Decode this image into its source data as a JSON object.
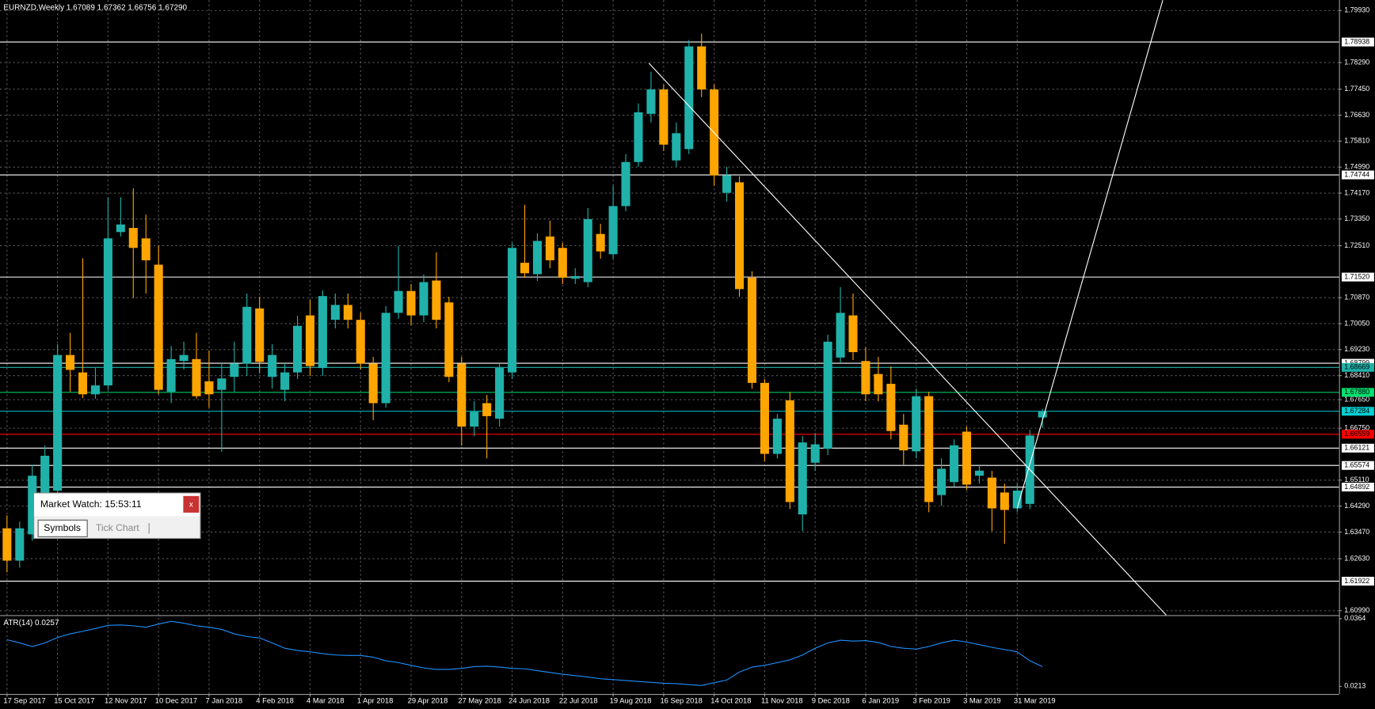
{
  "chart_data": {
    "type": "candlestick",
    "title": "EURNZD,Weekly  1.67089 1.67362 1.66756 1.67290",
    "categories": [
      "17 Sep 2017",
      null,
      null,
      null,
      "15 Oct 2017",
      null,
      null,
      null,
      "12 Nov 2017",
      null,
      null,
      null,
      "10 Dec 2017",
      null,
      null,
      null,
      "7 Jan 2018",
      null,
      null,
      null,
      "4 Feb 2018",
      null,
      null,
      null,
      "4 Mar 2018",
      null,
      null,
      null,
      "1 Apr 2018",
      null,
      null,
      null,
      "29 Apr 2018",
      null,
      null,
      null,
      "27 May 2018",
      null,
      null,
      null,
      "24 Jun 2018",
      null,
      null,
      null,
      "22 Jul 2018",
      null,
      null,
      null,
      "19 Aug 2018",
      null,
      null,
      null,
      "16 Sep 2018",
      null,
      null,
      null,
      "14 Oct 2018",
      null,
      null,
      null,
      "11 Nov 2018",
      null,
      null,
      null,
      "9 Dec 2018",
      null,
      null,
      null,
      "6 Jan 2019",
      null,
      null,
      null,
      "3 Feb 2019",
      null,
      null,
      null,
      "3 Mar 2019",
      null,
      null,
      null,
      "31 Mar 2019",
      null,
      null
    ],
    "open": [
      1.6359,
      1.6257,
      1.634,
      1.6409,
      1.6478,
      1.6906,
      1.6851,
      1.6782,
      1.681,
      1.7294,
      1.7307,
      1.7274,
      1.7191,
      1.679,
      1.6887,
      1.6893,
      1.6823,
      1.6796,
      1.6837,
      1.6879,
      1.7053,
      1.6837,
      1.6796,
      1.6851,
      1.7031,
      1.6865,
      1.7017,
      1.7064,
      1.7017,
      1.6879,
      1.6754,
      1.7039,
      1.7108,
      1.7031,
      1.7141,
      1.7072,
      1.6879,
      1.668,
      1.6754,
      1.6705,
      1.6851,
      1.7197,
      1.7161,
      1.728,
      1.7244,
      1.7147,
      1.7136,
      1.7288,
      1.7224,
      1.7376,
      1.7515,
      1.7667,
      1.7744,
      1.752,
      1.7556,
      1.788,
      1.7744,
      1.7418,
      1.7451,
      1.715,
      1.6818,
      1.6594,
      1.6763,
      1.6403,
      1.6566,
      1.661,
      1.6898,
      1.7031,
      1.6887,
      1.6846,
      1.6815,
      1.6686,
      1.6602,
      1.6776,
      1.6464,
      1.6505,
      1.6664,
      1.6525,
      1.6519,
      1.6472,
      1.6422,
      1.6436,
      1.67089
    ],
    "high": [
      1.64,
      1.638,
      1.656,
      1.662,
      1.694,
      1.6976,
      1.7211,
      1.6865,
      1.7404,
      1.7404,
      1.7432,
      1.7349,
      1.7252,
      1.6934,
      1.6948,
      1.6976,
      1.692,
      1.688,
      1.6948,
      1.71,
      1.709,
      1.694,
      1.688,
      1.703,
      1.708,
      1.711,
      1.71,
      1.71,
      1.704,
      1.69,
      1.706,
      1.725,
      1.713,
      1.716,
      1.723,
      1.709,
      1.69,
      1.676,
      1.678,
      1.688,
      1.726,
      1.738,
      1.729,
      1.733,
      1.726,
      1.718,
      1.737,
      1.732,
      1.744,
      1.754,
      1.77,
      1.78,
      1.776,
      1.764,
      1.79,
      1.792,
      1.776,
      1.75,
      1.747,
      1.717,
      1.683,
      1.672,
      1.679,
      1.665,
      1.666,
      1.697,
      1.712,
      1.71,
      1.693,
      1.69,
      1.687,
      1.672,
      1.68,
      1.679,
      1.658,
      1.664,
      1.668,
      1.656,
      1.654,
      1.65,
      1.65,
      1.667,
      1.67362
    ],
    "low": [
      1.622,
      1.6235,
      1.632,
      1.6395,
      1.646,
      1.679,
      1.677,
      1.6768,
      1.6796,
      1.728,
      1.7086,
      1.71,
      1.6782,
      1.6754,
      1.686,
      1.6768,
      1.674,
      1.66,
      1.679,
      1.684,
      1.685,
      1.68,
      1.676,
      1.683,
      1.684,
      1.684,
      1.699,
      1.699,
      1.686,
      1.67,
      1.674,
      1.702,
      1.7,
      1.701,
      1.699,
      1.682,
      1.662,
      1.665,
      1.658,
      1.668,
      1.683,
      1.715,
      1.714,
      1.718,
      1.713,
      1.713,
      1.712,
      1.721,
      1.721,
      1.736,
      1.75,
      1.764,
      1.755,
      1.75,
      1.754,
      1.772,
      1.744,
      1.739,
      1.709,
      1.68,
      1.657,
      1.658,
      1.642,
      1.635,
      1.654,
      1.659,
      1.688,
      1.689,
      1.676,
      1.676,
      1.664,
      1.656,
      1.658,
      1.641,
      1.643,
      1.649,
      1.648,
      1.65,
      1.635,
      1.631,
      1.641,
      1.642,
      1.66756
    ],
    "close": [
      1.6257,
      1.6359,
      1.6525,
      1.6588,
      1.6906,
      1.6859,
      1.6782,
      1.681,
      1.7274,
      1.7318,
      1.7244,
      1.7205,
      1.6796,
      1.6893,
      1.6906,
      1.6776,
      1.6782,
      1.6832,
      1.6879,
      1.7058,
      1.6884,
      1.6906,
      1.6851,
      1.6998,
      1.6871,
      1.7092,
      1.7064,
      1.7017,
      1.6879,
      1.6754,
      1.7039,
      1.7108,
      1.7031,
      1.7136,
      1.7017,
      1.6837,
      1.668,
      1.6727,
      1.6713,
      1.6865,
      1.7244,
      1.7164,
      1.7266,
      1.7205,
      1.715,
      1.7155,
      1.7335,
      1.7233,
      1.7376,
      1.7515,
      1.7672,
      1.7744,
      1.757,
      1.7606,
      1.788,
      1.7744,
      1.7473,
      1.7473,
      1.7114,
      1.6818,
      1.6594,
      1.6705,
      1.6442,
      1.663,
      1.6624,
      1.6948,
      1.7039,
      1.6915,
      1.6782,
      1.6782,
      1.6666,
      1.6605,
      1.6776,
      1.6442,
      1.6547,
      1.6621,
      1.6497,
      1.6541,
      1.6422,
      1.6417,
      1.6478,
      1.6652,
      1.6729
    ],
    "up_color": "#20b2aa",
    "down_color": "#ffa500",
    "ylim": [
      1.6085,
      1.8026
    ],
    "yticks": [
      {
        "value": 1.7993,
        "label": "1.79930"
      },
      {
        "value": 1.7829,
        "label": "1.78290"
      },
      {
        "value": 1.7745,
        "label": "1.77450"
      },
      {
        "value": 1.7663,
        "label": "1.76630"
      },
      {
        "value": 1.7581,
        "label": "1.75810"
      },
      {
        "value": 1.7499,
        "label": "1.74990"
      },
      {
        "value": 1.7417,
        "label": "1.74170"
      },
      {
        "value": 1.7335,
        "label": "1.73350"
      },
      {
        "value": 1.7251,
        "label": "1.72510"
      },
      {
        "value": 1.7087,
        "label": "1.70870"
      },
      {
        "value": 1.7005,
        "label": "1.70050"
      },
      {
        "value": 1.6923,
        "label": "1.69230"
      },
      {
        "value": 1.6841,
        "label": "1.68410"
      },
      {
        "value": 1.6765,
        "label": "1.67650"
      },
      {
        "value": 1.6675,
        "label": "1.66750"
      },
      {
        "value": 1.6511,
        "label": "1.65110"
      },
      {
        "value": 1.6429,
        "label": "1.64290"
      },
      {
        "value": 1.6347,
        "label": "1.63470"
      },
      {
        "value": 1.6263,
        "label": "1.62630"
      },
      {
        "value": 1.6099,
        "label": "1.60990"
      }
    ],
    "grid": true,
    "levels": [
      {
        "value": 1.78938,
        "label": "1.78938",
        "color": "#ffffff"
      },
      {
        "value": 1.74744,
        "label": "1.74744",
        "color": "#ffffff"
      },
      {
        "value": 1.7152,
        "label": "1.71520",
        "color": "#ffffff"
      },
      {
        "value": 1.68799,
        "label": "1.68799",
        "color": "#ffffff"
      },
      {
        "value": 1.68669,
        "label": "1.68669",
        "color": "#20b2aa"
      },
      {
        "value": 1.6788,
        "label": "1.67880",
        "color": "#00e070"
      },
      {
        "value": 1.67284,
        "label": "1.67284",
        "color": "#00ced1"
      },
      {
        "value": 1.66559,
        "label": "1.66559",
        "color": "#ff0000"
      },
      {
        "value": 1.66121,
        "label": "1.66121",
        "color": "#ffffff"
      },
      {
        "value": 1.65574,
        "label": "1.65574",
        "color": "#ffffff"
      },
      {
        "value": 1.64892,
        "label": "1.64892",
        "color": "#ffffff"
      },
      {
        "value": 1.61922,
        "label": "1.61922",
        "color": "#ffffff"
      }
    ],
    "indicator": {
      "label": "ATR(14) 0.0257",
      "color": "#1e90ff",
      "values": [
        0.0317,
        0.031,
        0.0302,
        0.031,
        0.0322,
        0.033,
        0.0336,
        0.0342,
        0.0349,
        0.035,
        0.0348,
        0.0345,
        0.0352,
        0.0358,
        0.0354,
        0.0348,
        0.0345,
        0.034,
        0.033,
        0.0324,
        0.0321,
        0.031,
        0.0298,
        0.0293,
        0.029,
        0.0286,
        0.0283,
        0.0282,
        0.0282,
        0.0278,
        0.027,
        0.0266,
        0.026,
        0.0254,
        0.0251,
        0.0251,
        0.0253,
        0.0257,
        0.0258,
        0.0256,
        0.0253,
        0.0252,
        0.0248,
        0.0244,
        0.024,
        0.0237,
        0.0234,
        0.023,
        0.0228,
        0.0226,
        0.0224,
        0.0222,
        0.022,
        0.0219,
        0.0217,
        0.0215,
        0.0221,
        0.0227,
        0.0245,
        0.0256,
        0.026,
        0.0266,
        0.0272,
        0.0283,
        0.0298,
        0.031,
        0.0316,
        0.0314,
        0.0315,
        0.0311,
        0.0302,
        0.0298,
        0.0296,
        0.0302,
        0.031,
        0.0316,
        0.0312,
        0.0306,
        0.03,
        0.0295,
        0.029,
        0.027,
        0.0257
      ],
      "ylim": [
        0.0196,
        0.0368
      ],
      "yticks": [
        0.0364,
        0.0213
      ]
    }
  },
  "market_watch": {
    "title": "Market Watch: 15:53:11",
    "close": "x",
    "tabs": [
      "Symbols",
      "Tick Chart"
    ]
  }
}
